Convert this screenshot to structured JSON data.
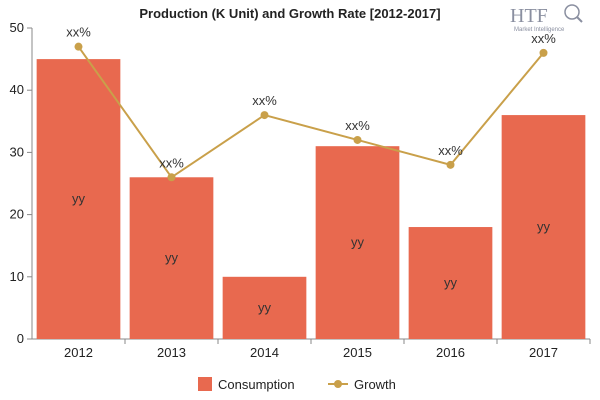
{
  "chart_data": {
    "type": "bar",
    "title": "Production (K Unit) and Growth Rate [2012-2017]",
    "categories": [
      "2012",
      "2013",
      "2014",
      "2015",
      "2016",
      "2017"
    ],
    "series": [
      {
        "name": "Consumption",
        "type": "bar",
        "values": [
          45,
          26,
          10,
          31,
          18,
          36
        ],
        "labels": [
          "yy",
          "yy",
          "yy",
          "yy",
          "yy",
          "yy"
        ],
        "color": "#e8694f"
      },
      {
        "name": "Growth",
        "type": "line",
        "values": [
          47,
          26,
          36,
          32,
          28,
          46
        ],
        "labels": [
          "xx%",
          "xx%",
          "xx%",
          "xx%",
          "xx%",
          "xx%"
        ],
        "color": "#c9a04a"
      }
    ],
    "ylim": [
      0,
      50
    ],
    "yticks": [
      0,
      10,
      20,
      30,
      40,
      50
    ],
    "xlabel": "",
    "ylabel": "",
    "grid": false,
    "legend_position": "bottom"
  },
  "logo": {
    "text": "HTF",
    "subtext": "Market Intelligence"
  }
}
